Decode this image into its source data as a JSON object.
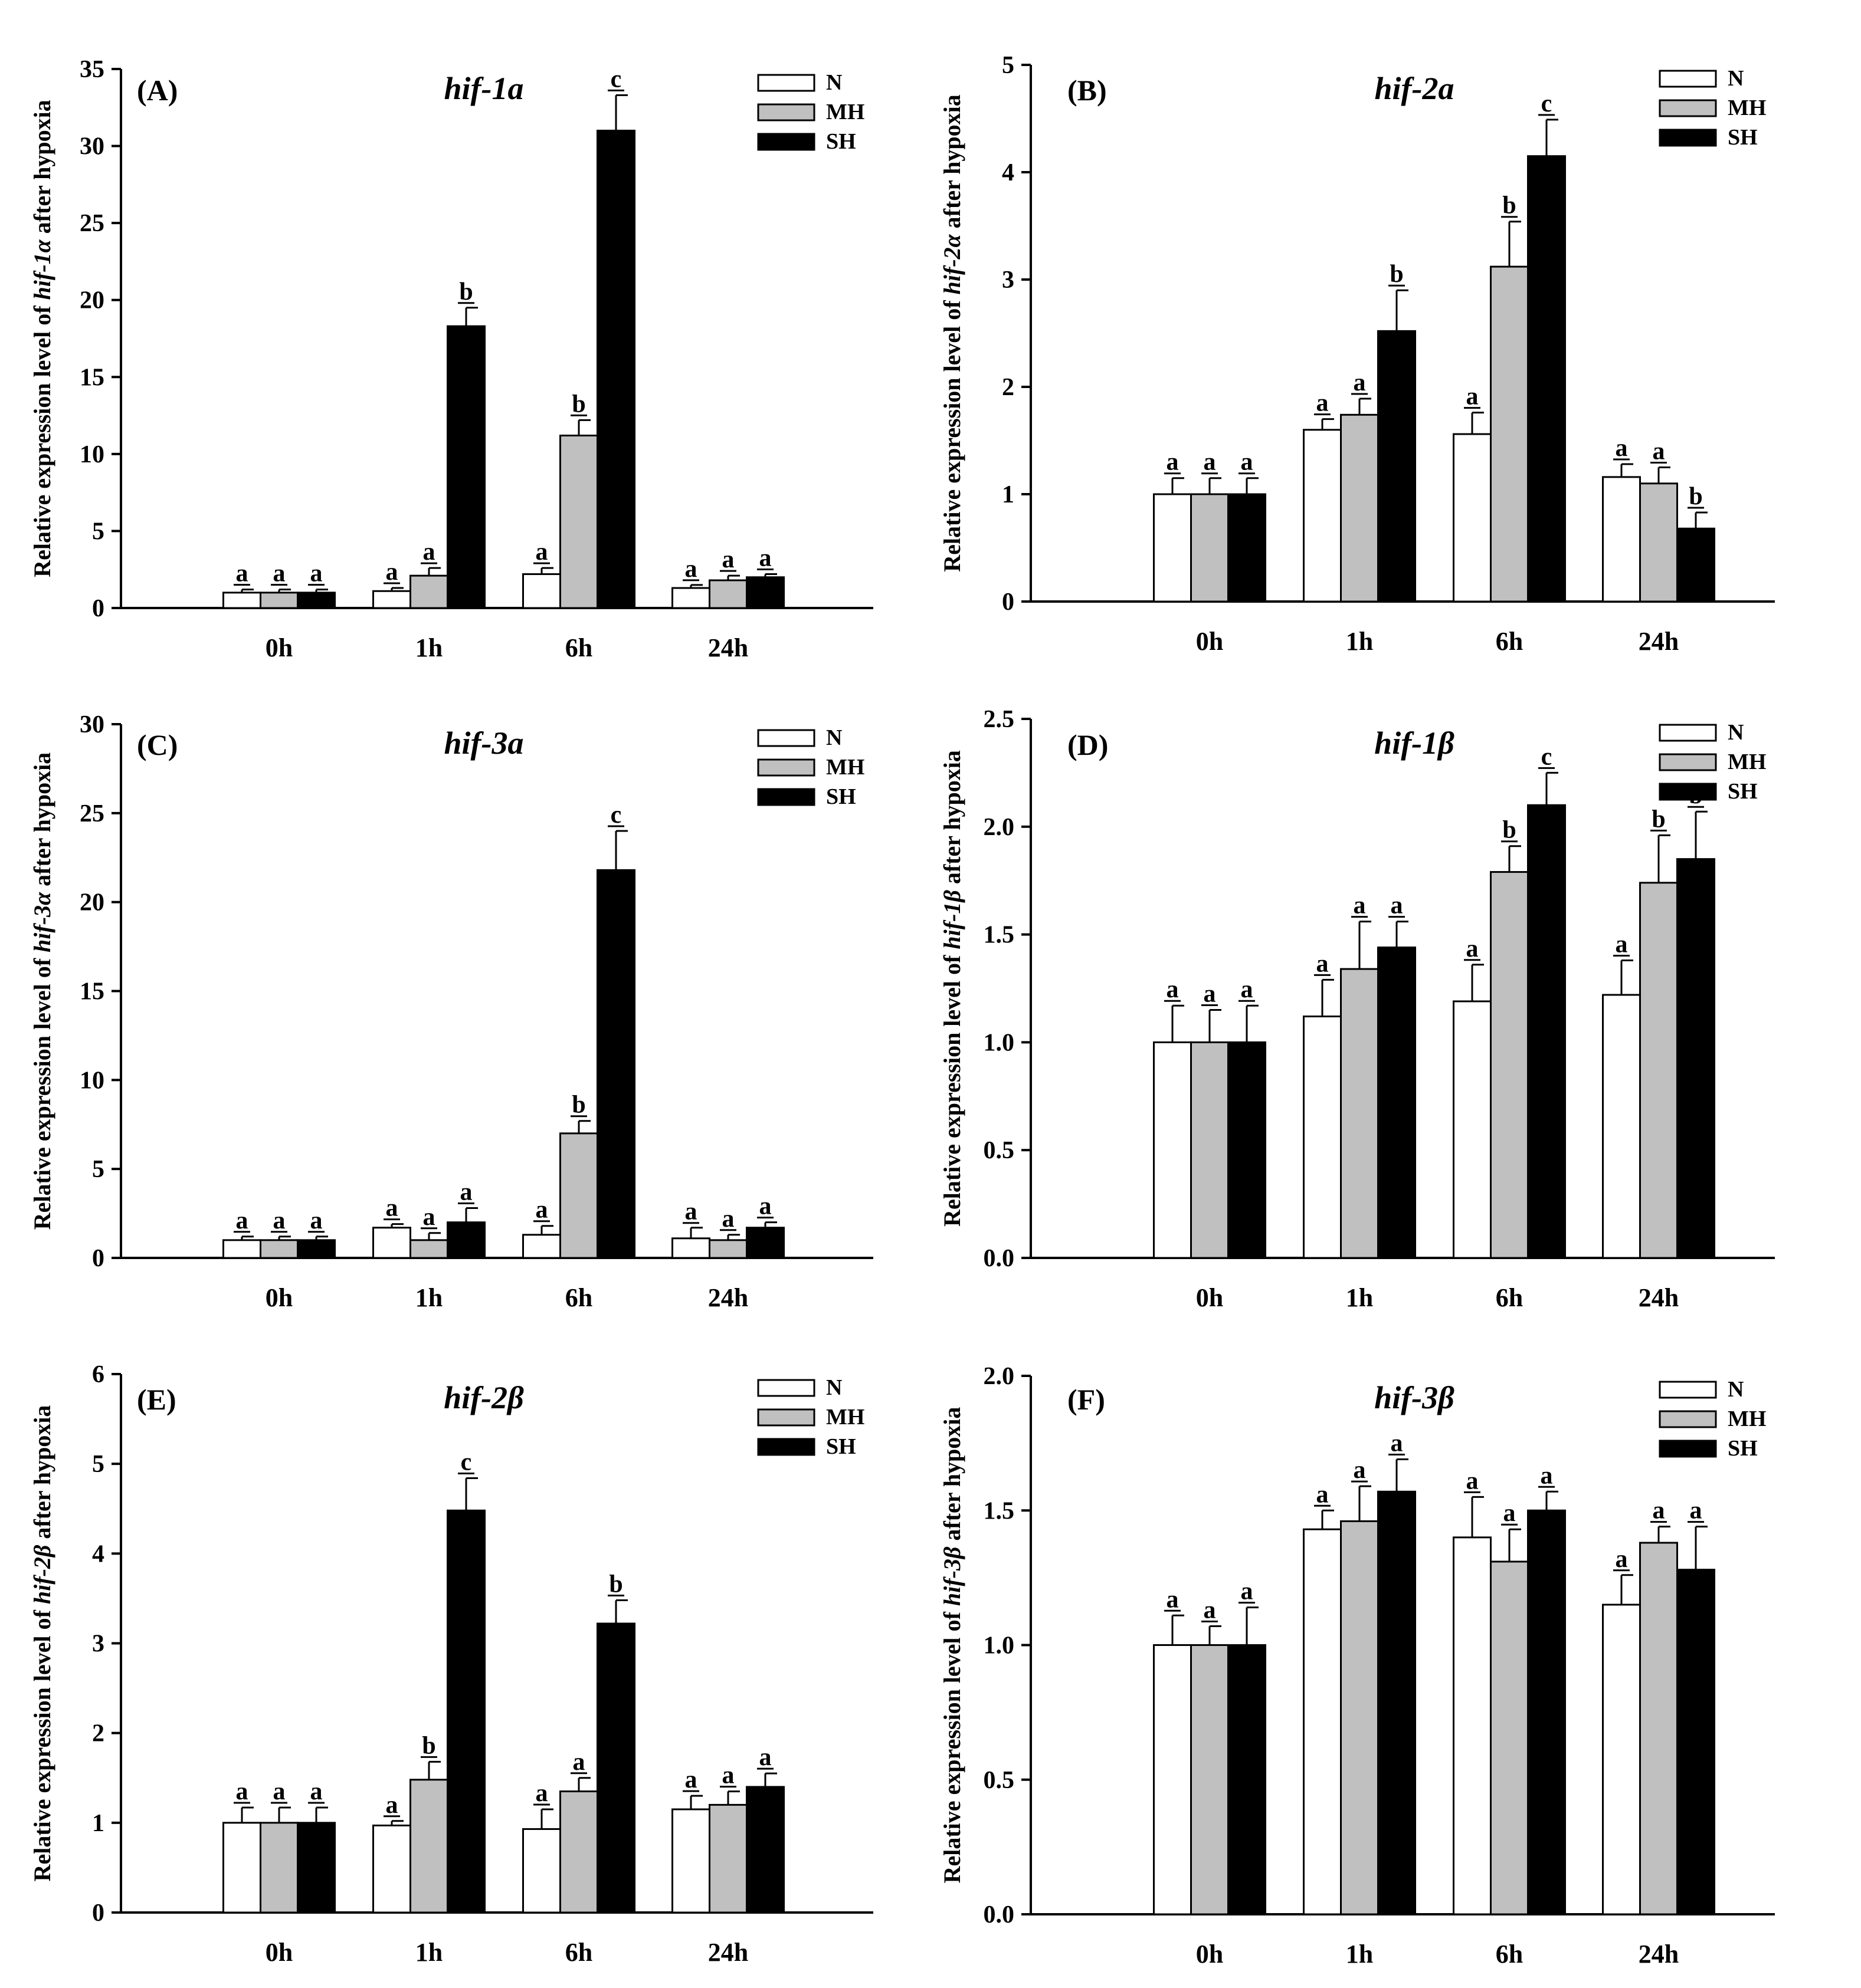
{
  "figure": {
    "legend_labels": [
      "N",
      "MH",
      "SH"
    ],
    "series_colors": [
      "#ffffff",
      "#c0c0c0",
      "#000000"
    ],
    "axis_color": "#000000"
  },
  "chart_data": [
    {
      "type": "bar",
      "panel_label": "(A)",
      "title": "hif-1a",
      "ylabel": {
        "before": "Relative expression level of ",
        "italic": "hif-1α",
        "after": " after hypoxia"
      },
      "xlabel": "",
      "categories": [
        "0h",
        "1h",
        "6h",
        "24h"
      ],
      "ylim": [
        0,
        35
      ],
      "yticks": [
        0,
        5,
        10,
        15,
        20,
        25,
        30,
        35
      ],
      "ytick_labels": [
        "0",
        "5",
        "10",
        "15",
        "20",
        "25",
        "30",
        "35"
      ],
      "legend_position": "top-right",
      "series": [
        {
          "name": "N",
          "values": [
            1.0,
            1.1,
            2.2,
            1.3
          ],
          "errors": [
            0.2,
            0.2,
            0.4,
            0.2
          ],
          "letters": [
            "a",
            "a",
            "a",
            "a"
          ]
        },
        {
          "name": "MH",
          "values": [
            1.0,
            2.1,
            11.2,
            1.8
          ],
          "errors": [
            0.2,
            0.5,
            1.0,
            0.3
          ],
          "letters": [
            "a",
            "a",
            "b",
            "a"
          ]
        },
        {
          "name": "SH",
          "values": [
            1.0,
            18.3,
            31.0,
            2.0
          ],
          "errors": [
            0.2,
            1.2,
            2.3,
            0.2
          ],
          "letters": [
            "a",
            "b",
            "c",
            "a"
          ]
        }
      ]
    },
    {
      "type": "bar",
      "panel_label": "(B)",
      "title": "hif-2a",
      "ylabel": {
        "before": "Relative expression level of ",
        "italic": "hif-2α",
        "after": " after hypoxia"
      },
      "xlabel": "",
      "categories": [
        "0h",
        "1h",
        "6h",
        "24h"
      ],
      "ylim": [
        0,
        5
      ],
      "yticks": [
        0,
        1,
        2,
        3,
        4,
        5
      ],
      "ytick_labels": [
        "0",
        "1",
        "2",
        "3",
        "4",
        "5"
      ],
      "legend_position": "top-right",
      "series": [
        {
          "name": "N",
          "values": [
            1.0,
            1.6,
            1.56,
            1.16
          ],
          "errors": [
            0.15,
            0.1,
            0.2,
            0.12
          ],
          "letters": [
            "a",
            "a",
            "a",
            "a"
          ]
        },
        {
          "name": "MH",
          "values": [
            1.0,
            1.74,
            3.12,
            1.1
          ],
          "errors": [
            0.15,
            0.15,
            0.42,
            0.15
          ],
          "letters": [
            "a",
            "a",
            "b",
            "a"
          ]
        },
        {
          "name": "SH",
          "values": [
            1.0,
            2.52,
            4.15,
            0.68
          ],
          "errors": [
            0.15,
            0.38,
            0.34,
            0.15
          ],
          "letters": [
            "a",
            "b",
            "c",
            "b"
          ]
        }
      ]
    },
    {
      "type": "bar",
      "panel_label": "(C)",
      "title": "hif-3a",
      "ylabel": {
        "before": "Relative expression level of ",
        "italic": "hif-3α",
        "after": " after hypoxia"
      },
      "xlabel": "",
      "categories": [
        "0h",
        "1h",
        "6h",
        "24h"
      ],
      "ylim": [
        0,
        30
      ],
      "yticks": [
        0,
        5,
        10,
        15,
        20,
        25,
        30
      ],
      "ytick_labels": [
        "0",
        "5",
        "10",
        "15",
        "20",
        "25",
        "30"
      ],
      "legend_position": "top-right",
      "series": [
        {
          "name": "N",
          "values": [
            1.0,
            1.7,
            1.3,
            1.1
          ],
          "errors": [
            0.2,
            0.2,
            0.5,
            0.6
          ],
          "letters": [
            "a",
            "a",
            "a",
            "a"
          ]
        },
        {
          "name": "MH",
          "values": [
            1.0,
            1.0,
            7.0,
            1.0
          ],
          "errors": [
            0.2,
            0.4,
            0.7,
            0.3
          ],
          "letters": [
            "a",
            "a",
            "b",
            "a"
          ]
        },
        {
          "name": "SH",
          "values": [
            1.0,
            2.0,
            21.8,
            1.7
          ],
          "errors": [
            0.2,
            0.8,
            2.2,
            0.3
          ],
          "letters": [
            "a",
            "a",
            "c",
            "a"
          ]
        }
      ]
    },
    {
      "type": "bar",
      "panel_label": "(D)",
      "title": "hif-1β",
      "ylabel": {
        "before": "Relative expression level of ",
        "italic": "hif-1β",
        "after": " after hypoxia"
      },
      "xlabel": "",
      "categories": [
        "0h",
        "1h",
        "6h",
        "24h"
      ],
      "ylim": [
        0,
        2.5
      ],
      "yticks": [
        0,
        0.5,
        1.0,
        1.5,
        2.0,
        2.5
      ],
      "ytick_labels": [
        "0.0",
        "0.5",
        "1.0",
        "1.5",
        "2.0",
        "2.5"
      ],
      "legend_position": "top-right",
      "series": [
        {
          "name": "N",
          "values": [
            1.0,
            1.12,
            1.19,
            1.22
          ],
          "errors": [
            0.17,
            0.17,
            0.17,
            0.16
          ],
          "letters": [
            "a",
            "a",
            "a",
            "a"
          ]
        },
        {
          "name": "MH",
          "values": [
            1.0,
            1.34,
            1.79,
            1.74
          ],
          "errors": [
            0.15,
            0.22,
            0.12,
            0.22
          ],
          "letters": [
            "a",
            "a",
            "b",
            "b"
          ]
        },
        {
          "name": "SH",
          "values": [
            1.0,
            1.44,
            2.1,
            1.85
          ],
          "errors": [
            0.17,
            0.12,
            0.15,
            0.22
          ],
          "letters": [
            "a",
            "a",
            "c",
            "b"
          ]
        }
      ]
    },
    {
      "type": "bar",
      "panel_label": "(E)",
      "title": "hif-2β",
      "ylabel": {
        "before": "Relative expression level of ",
        "italic": "hif-2β",
        "after": " after hypoxia"
      },
      "xlabel": "",
      "categories": [
        "0h",
        "1h",
        "6h",
        "24h"
      ],
      "ylim": [
        0,
        6
      ],
      "yticks": [
        0,
        1,
        2,
        3,
        4,
        5,
        6
      ],
      "ytick_labels": [
        "0",
        "1",
        "2",
        "3",
        "4",
        "5",
        "6"
      ],
      "legend_position": "top-right",
      "series": [
        {
          "name": "N",
          "values": [
            1.0,
            0.97,
            0.93,
            1.15
          ],
          "errors": [
            0.17,
            0.05,
            0.22,
            0.15
          ],
          "letters": [
            "a",
            "a",
            "a",
            "a"
          ]
        },
        {
          "name": "MH",
          "values": [
            1.0,
            1.48,
            1.35,
            1.2
          ],
          "errors": [
            0.17,
            0.2,
            0.15,
            0.15
          ],
          "letters": [
            "a",
            "b",
            "a",
            "a"
          ]
        },
        {
          "name": "SH",
          "values": [
            1.0,
            4.48,
            3.22,
            1.4
          ],
          "errors": [
            0.17,
            0.36,
            0.26,
            0.15
          ],
          "letters": [
            "a",
            "c",
            "b",
            "a"
          ]
        }
      ]
    },
    {
      "type": "bar",
      "panel_label": "(F)",
      "title": "hif-3β",
      "ylabel": {
        "before": "Relative expression level of ",
        "italic": "hif-3β",
        "after": " after hypoxia"
      },
      "xlabel": "",
      "categories": [
        "0h",
        "1h",
        "6h",
        "24h"
      ],
      "ylim": [
        0,
        2.0
      ],
      "yticks": [
        0,
        0.5,
        1.0,
        1.5,
        2.0
      ],
      "ytick_labels": [
        "0.0",
        "0.5",
        "1.0",
        "1.5",
        "2.0"
      ],
      "legend_position": "top-right",
      "series": [
        {
          "name": "N",
          "values": [
            1.0,
            1.43,
            1.4,
            1.15
          ],
          "errors": [
            0.11,
            0.07,
            0.15,
            0.11
          ],
          "letters": [
            "a",
            "a",
            "a",
            "a"
          ]
        },
        {
          "name": "MH",
          "values": [
            1.0,
            1.46,
            1.31,
            1.38
          ],
          "errors": [
            0.07,
            0.13,
            0.12,
            0.06
          ],
          "letters": [
            "a",
            "a",
            "a",
            "a"
          ]
        },
        {
          "name": "SH",
          "values": [
            1.0,
            1.57,
            1.5,
            1.28
          ],
          "errors": [
            0.14,
            0.12,
            0.07,
            0.16
          ],
          "letters": [
            "a",
            "a",
            "a",
            "a"
          ]
        }
      ]
    }
  ]
}
